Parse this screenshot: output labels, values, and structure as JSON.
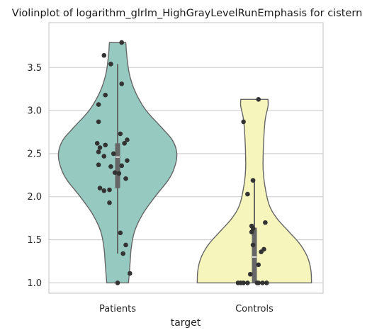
{
  "chart_data": {
    "type": "violin",
    "title": "Violinplot of logarithm_glrlm_HighGrayLevelRunEmphasis for cistern",
    "xlabel": "target",
    "ylabel": "",
    "categories": [
      "Patients",
      "Controls"
    ],
    "y_ticks": [
      "1.0",
      "1.5",
      "2.0",
      "2.5",
      "3.0",
      "3.5"
    ],
    "ylim": [
      0.88,
      4.02
    ],
    "grid": "horizontal",
    "colors": {
      "Patients": "#96cac1",
      "Controls": "#f6f6bc",
      "outline": "#666666",
      "point": "#333333",
      "grid": "#cccccc",
      "frame": "#cccccc"
    },
    "violins": [
      {
        "name": "Patients",
        "profile": [
          [
            1.0,
            0.16
          ],
          [
            1.2,
            0.18
          ],
          [
            1.4,
            0.2
          ],
          [
            1.6,
            0.25
          ],
          [
            1.8,
            0.37
          ],
          [
            2.0,
            0.55
          ],
          [
            2.2,
            0.75
          ],
          [
            2.35,
            0.84
          ],
          [
            2.5,
            0.87
          ],
          [
            2.65,
            0.81
          ],
          [
            2.8,
            0.65
          ],
          [
            3.0,
            0.42
          ],
          [
            3.2,
            0.27
          ],
          [
            3.4,
            0.18
          ],
          [
            3.6,
            0.14
          ],
          [
            3.79,
            0.12
          ]
        ],
        "box": {
          "q1": 2.1,
          "median": 2.46,
          "q3": 2.62,
          "whisker_low": 1.34,
          "whisker_high": 3.54
        },
        "points": [
          [
            1.0,
            0.0
          ],
          [
            1.11,
            0.18
          ],
          [
            1.34,
            0.08
          ],
          [
            1.44,
            0.12
          ],
          [
            1.58,
            0.04
          ],
          [
            1.93,
            -0.12
          ],
          [
            2.07,
            -0.2
          ],
          [
            2.08,
            -0.12
          ],
          [
            2.1,
            -0.26
          ],
          [
            2.21,
            0.12
          ],
          [
            2.27,
            0.02
          ],
          [
            2.28,
            -0.04
          ],
          [
            2.35,
            -0.1
          ],
          [
            2.36,
            0.06
          ],
          [
            2.37,
            -0.28
          ],
          [
            2.42,
            0.14
          ],
          [
            2.47,
            -0.2
          ],
          [
            2.5,
            -0.06
          ],
          [
            2.52,
            -0.28
          ],
          [
            2.57,
            -0.26
          ],
          [
            2.6,
            -0.18
          ],
          [
            2.62,
            0.1
          ],
          [
            2.62,
            -0.3
          ],
          [
            2.66,
            0.14
          ],
          [
            2.73,
            0.04
          ],
          [
            2.87,
            -0.28
          ],
          [
            3.07,
            -0.28
          ],
          [
            3.18,
            -0.18
          ],
          [
            3.31,
            0.06
          ],
          [
            3.54,
            -0.1
          ],
          [
            3.64,
            -0.2
          ],
          [
            3.79,
            0.06
          ]
        ]
      },
      {
        "name": "Controls",
        "profile": [
          [
            1.0,
            0.84
          ],
          [
            1.15,
            0.83
          ],
          [
            1.3,
            0.78
          ],
          [
            1.45,
            0.67
          ],
          [
            1.6,
            0.5
          ],
          [
            1.75,
            0.33
          ],
          [
            1.9,
            0.22
          ],
          [
            2.1,
            0.16
          ],
          [
            2.3,
            0.13
          ],
          [
            2.5,
            0.13
          ],
          [
            2.7,
            0.14
          ],
          [
            2.9,
            0.16
          ],
          [
            3.05,
            0.2
          ],
          [
            3.13,
            0.2
          ]
        ],
        "box": {
          "q1": 1.0,
          "median": 1.3,
          "q3": 1.64,
          "whisker_low": 1.0,
          "whisker_high": 2.19
        },
        "points": [
          [
            1.0,
            -0.24
          ],
          [
            1.0,
            -0.2
          ],
          [
            1.0,
            -0.16
          ],
          [
            1.0,
            -0.1
          ],
          [
            1.0,
            0.04
          ],
          [
            1.0,
            0.06
          ],
          [
            1.0,
            0.12
          ],
          [
            1.0,
            0.18
          ],
          [
            1.1,
            -0.06
          ],
          [
            1.21,
            0.06
          ],
          [
            1.36,
            0.1
          ],
          [
            1.39,
            0.14
          ],
          [
            1.44,
            -0.02
          ],
          [
            1.59,
            -0.04
          ],
          [
            1.63,
            -0.02
          ],
          [
            1.66,
            -0.04
          ],
          [
            1.7,
            0.16
          ],
          [
            2.03,
            -0.1
          ],
          [
            2.19,
            -0.02
          ],
          [
            2.87,
            -0.16
          ],
          [
            3.13,
            0.06
          ]
        ]
      }
    ]
  }
}
